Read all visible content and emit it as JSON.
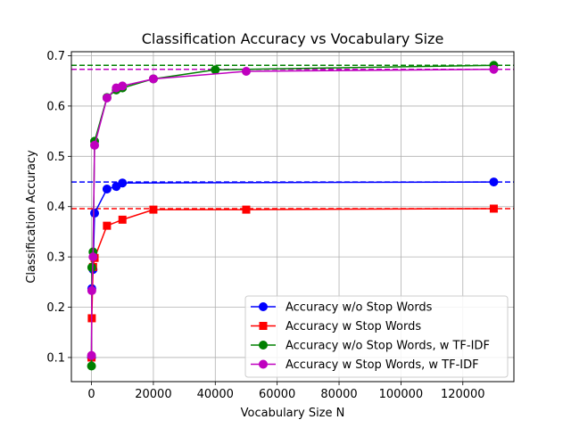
{
  "chart_data": {
    "type": "line",
    "title": "Classification Accuracy vs Vocabulary Size",
    "xlabel": "Vocabulary Size N",
    "ylabel": "Classification Accuracy",
    "xlim": [
      -6500,
      136500
    ],
    "ylim": [
      0.052,
      0.708
    ],
    "xticks": [
      0,
      20000,
      40000,
      60000,
      80000,
      100000,
      120000
    ],
    "xtick_labels": [
      "0",
      "20000",
      "40000",
      "60000",
      "80000",
      "100000",
      "120000"
    ],
    "yticks": [
      0.1,
      0.2,
      0.3,
      0.4,
      0.5,
      0.6,
      0.7
    ],
    "ytick_labels": [
      "0.1",
      "0.2",
      "0.3",
      "0.4",
      "0.5",
      "0.6",
      "0.7"
    ],
    "grid": true,
    "legend_position": "lower-right",
    "series": [
      {
        "name": "Accuracy w/o Stop Words",
        "color": "#0000ff",
        "marker": "circle",
        "x": [
          10,
          100,
          500,
          1000,
          5000,
          8000,
          10000,
          130000
        ],
        "y": [
          0.1,
          0.237,
          0.275,
          0.387,
          0.435,
          0.44,
          0.447,
          0.449
        ]
      },
      {
        "name": "Accuracy w Stop Words",
        "color": "#ff0000",
        "marker": "square",
        "x": [
          10,
          100,
          500,
          1000,
          5000,
          10000,
          20000,
          50000,
          130000
        ],
        "y": [
          0.1,
          0.178,
          0.28,
          0.298,
          0.362,
          0.374,
          0.394,
          0.394,
          0.396
        ]
      },
      {
        "name": "Accuracy w/o Stop Words, w TF-IDF",
        "color": "#008000",
        "marker": "circle",
        "x": [
          10,
          100,
          500,
          1000,
          5000,
          8000,
          10000,
          20000,
          40000,
          130000
        ],
        "y": [
          0.083,
          0.279,
          0.31,
          0.53,
          0.617,
          0.632,
          0.636,
          0.654,
          0.672,
          0.681
        ]
      },
      {
        "name": "Accuracy w Stop Words, w TF-IDF",
        "color": "#bf00bf",
        "marker": "circle",
        "x": [
          10,
          100,
          500,
          1000,
          5000,
          8000,
          10000,
          20000,
          50000,
          130000
        ],
        "y": [
          0.104,
          0.233,
          0.3,
          0.522,
          0.616,
          0.636,
          0.64,
          0.654,
          0.669,
          0.673
        ]
      }
    ],
    "reference_lines": [
      {
        "series": "Accuracy w/o Stop Words",
        "y": 0.449,
        "color": "#0000ff",
        "style": "dashed"
      },
      {
        "series": "Accuracy w Stop Words",
        "y": 0.396,
        "color": "#ff0000",
        "style": "dashed"
      },
      {
        "series": "Accuracy w/o Stop Words, w TF-IDF",
        "y": 0.681,
        "color": "#008000",
        "style": "dashed"
      },
      {
        "series": "Accuracy w Stop Words, w TF-IDF",
        "y": 0.673,
        "color": "#bf00bf",
        "style": "dashed"
      }
    ]
  }
}
